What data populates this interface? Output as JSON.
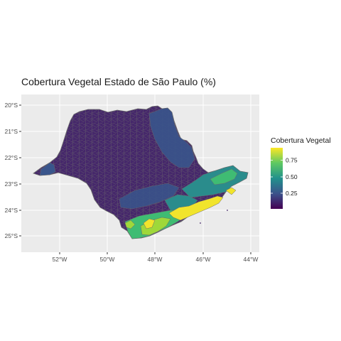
{
  "title": "Cobertura Vegetal Estado de São Paulo (%)",
  "axes": {
    "x_ticks": [
      "52°W",
      "50°W",
      "48°W",
      "46°W",
      "44°W"
    ],
    "y_ticks": [
      "20°S",
      "21°S",
      "22°S",
      "23°S",
      "24°S",
      "25°S"
    ]
  },
  "legend": {
    "title": "Cobertura Vegetal",
    "labels": [
      "0.75",
      "0.50",
      "0.25"
    ],
    "gradient": [
      "#fde725",
      "#5ec962",
      "#21918c",
      "#3b528b",
      "#440154"
    ]
  },
  "colors": {
    "panel": "#ebebeb",
    "grid": "#ffffff",
    "border": "#6b6b6b",
    "low": "#46286b",
    "mid_low": "#39558c",
    "mid": "#2a8c8c",
    "mid_high": "#3fbc73",
    "high": "#9fd83a",
    "top": "#f1e42c"
  }
}
